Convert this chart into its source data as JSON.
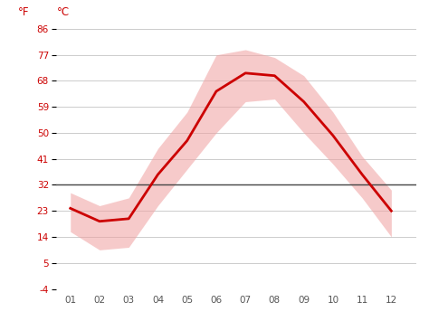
{
  "months": [
    1,
    2,
    3,
    4,
    5,
    6,
    7,
    8,
    9,
    10,
    11,
    12
  ],
  "month_labels": [
    "01",
    "02",
    "03",
    "04",
    "05",
    "06",
    "07",
    "08",
    "09",
    "10",
    "11",
    "12"
  ],
  "avg_temp": [
    -4.5,
    -7.0,
    -6.5,
    2.0,
    8.5,
    18.0,
    21.5,
    21.0,
    16.0,
    9.5,
    2.0,
    -5.0
  ],
  "temp_max": [
    -1.5,
    -4.0,
    -2.5,
    7.0,
    14.0,
    25.0,
    26.0,
    24.5,
    21.0,
    14.0,
    5.5,
    -1.0
  ],
  "temp_min": [
    -9.0,
    -12.5,
    -12.0,
    -4.0,
    3.0,
    10.0,
    16.0,
    16.5,
    10.0,
    4.0,
    -2.5,
    -10.0
  ],
  "line_color": "#cc0000",
  "band_color": "#f0a0a0",
  "zero_line_color": "#444444",
  "grid_color": "#cccccc",
  "tick_color": "#cc0000",
  "background_color": "#ffffff",
  "ylim_celsius": [
    -20,
    30
  ],
  "yticks_celsius": [
    -20,
    -15,
    -10,
    -5,
    0,
    5,
    10,
    15,
    20,
    25,
    30
  ],
  "yticks_fahrenheit": [
    -4,
    5,
    14,
    23,
    32,
    41,
    50,
    59,
    68,
    77,
    86
  ],
  "ylabel_f": "°F",
  "ylabel_c": "°C",
  "line_width": 2.0,
  "band_alpha": 0.55,
  "xlim": [
    0.5,
    12.85
  ]
}
